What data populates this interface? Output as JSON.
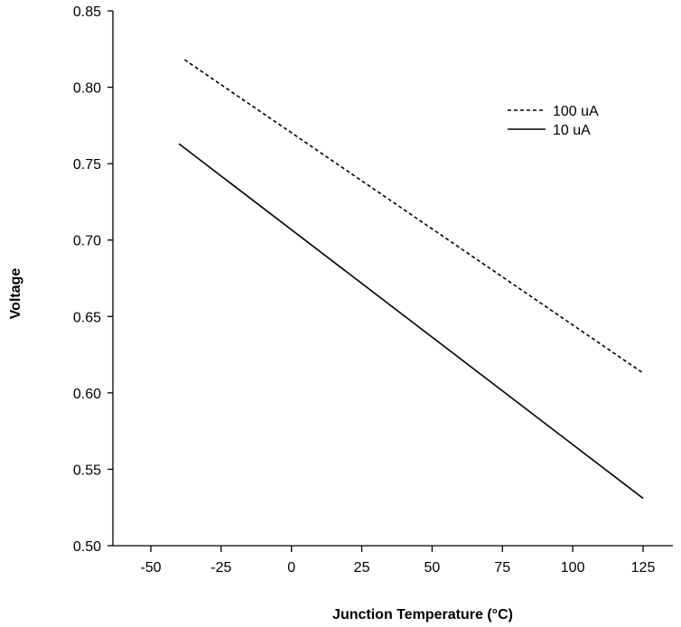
{
  "chart_data": {
    "type": "line",
    "title": "",
    "xlabel": "Junction Temperature (°C)",
    "ylabel": "Voltage",
    "xlim": [
      -50,
      125
    ],
    "ylim": [
      0.5,
      0.85
    ],
    "x_ticks": [
      "-50",
      "-25",
      "0",
      "25",
      "50",
      "75",
      "100",
      "125"
    ],
    "y_ticks": [
      "0.50",
      "0.55",
      "0.60",
      "0.65",
      "0.70",
      "0.75",
      "0.80",
      "0.85"
    ],
    "grid": false,
    "legend_position": "top-right",
    "series": [
      {
        "name": "100 uA",
        "style": "dashed",
        "color": "#000000",
        "x": [
          -38,
          125
        ],
        "y": [
          0.818,
          0.613
        ]
      },
      {
        "name": "10 uA",
        "style": "solid",
        "color": "#000000",
        "x": [
          -40,
          125
        ],
        "y": [
          0.763,
          0.531
        ]
      }
    ]
  }
}
